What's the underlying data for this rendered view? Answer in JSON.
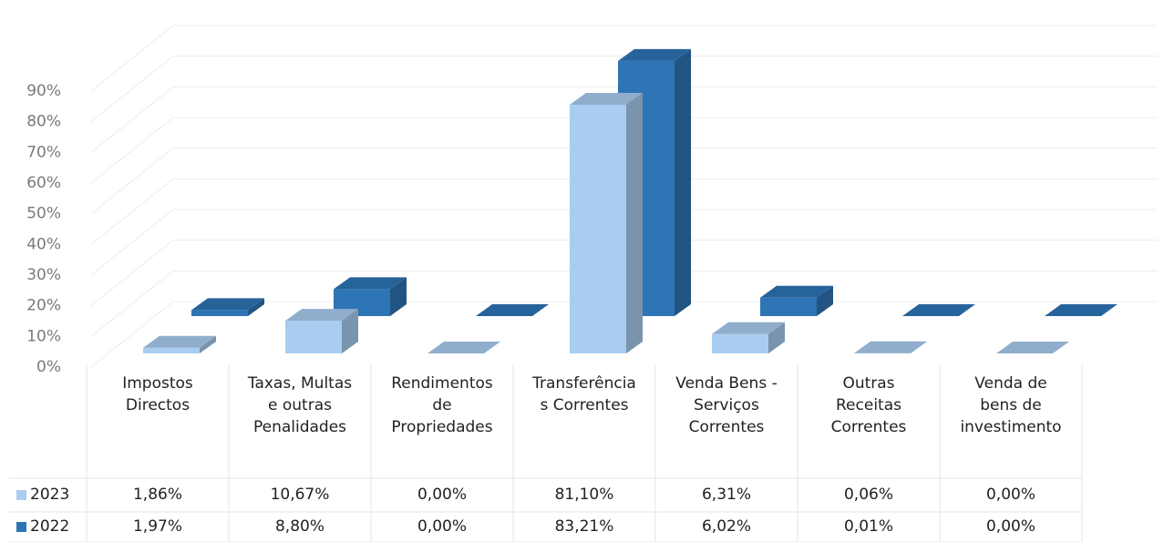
{
  "chart_data": {
    "type": "bar3d",
    "categories": [
      "Impostos Directos",
      "Taxas, Multas e outras Penalidades",
      "Rendimentos de Propriedades",
      "Transferências Correntes",
      "Venda Bens - Serviços Correntes",
      "Outras Receitas Correntes",
      "Venda de bens de investimento"
    ],
    "series": [
      {
        "name": "2023",
        "color": "#a9cdf0",
        "values": [
          1.86,
          10.67,
          0.0,
          81.1,
          6.31,
          0.06,
          0.0
        ],
        "value_labels": [
          "1,86%",
          "10,67%",
          "0,00%",
          "81,10%",
          "6,31%",
          "0,06%",
          "0,00%"
        ]
      },
      {
        "name": "2022",
        "color": "#2e75b6",
        "values": [
          1.97,
          8.8,
          0.0,
          83.21,
          6.02,
          0.01,
          0.0
        ],
        "value_labels": [
          "1,97%",
          "8,80%",
          "0,00%",
          "83,21%",
          "6,02%",
          "0,01%",
          "0,00%"
        ]
      }
    ],
    "ylim": [
      0,
      90
    ],
    "yticks": [
      {
        "value": 0,
        "label": "0%"
      },
      {
        "value": 10,
        "label": "10%"
      },
      {
        "value": 20,
        "label": "20%"
      },
      {
        "value": 30,
        "label": "30%"
      },
      {
        "value": 40,
        "label": "40%"
      },
      {
        "value": 50,
        "label": "50%"
      },
      {
        "value": 60,
        "label": "60%"
      },
      {
        "value": 70,
        "label": "70%"
      },
      {
        "value": 80,
        "label": "80%"
      },
      {
        "value": 90,
        "label": "90%"
      }
    ],
    "grid": true
  }
}
